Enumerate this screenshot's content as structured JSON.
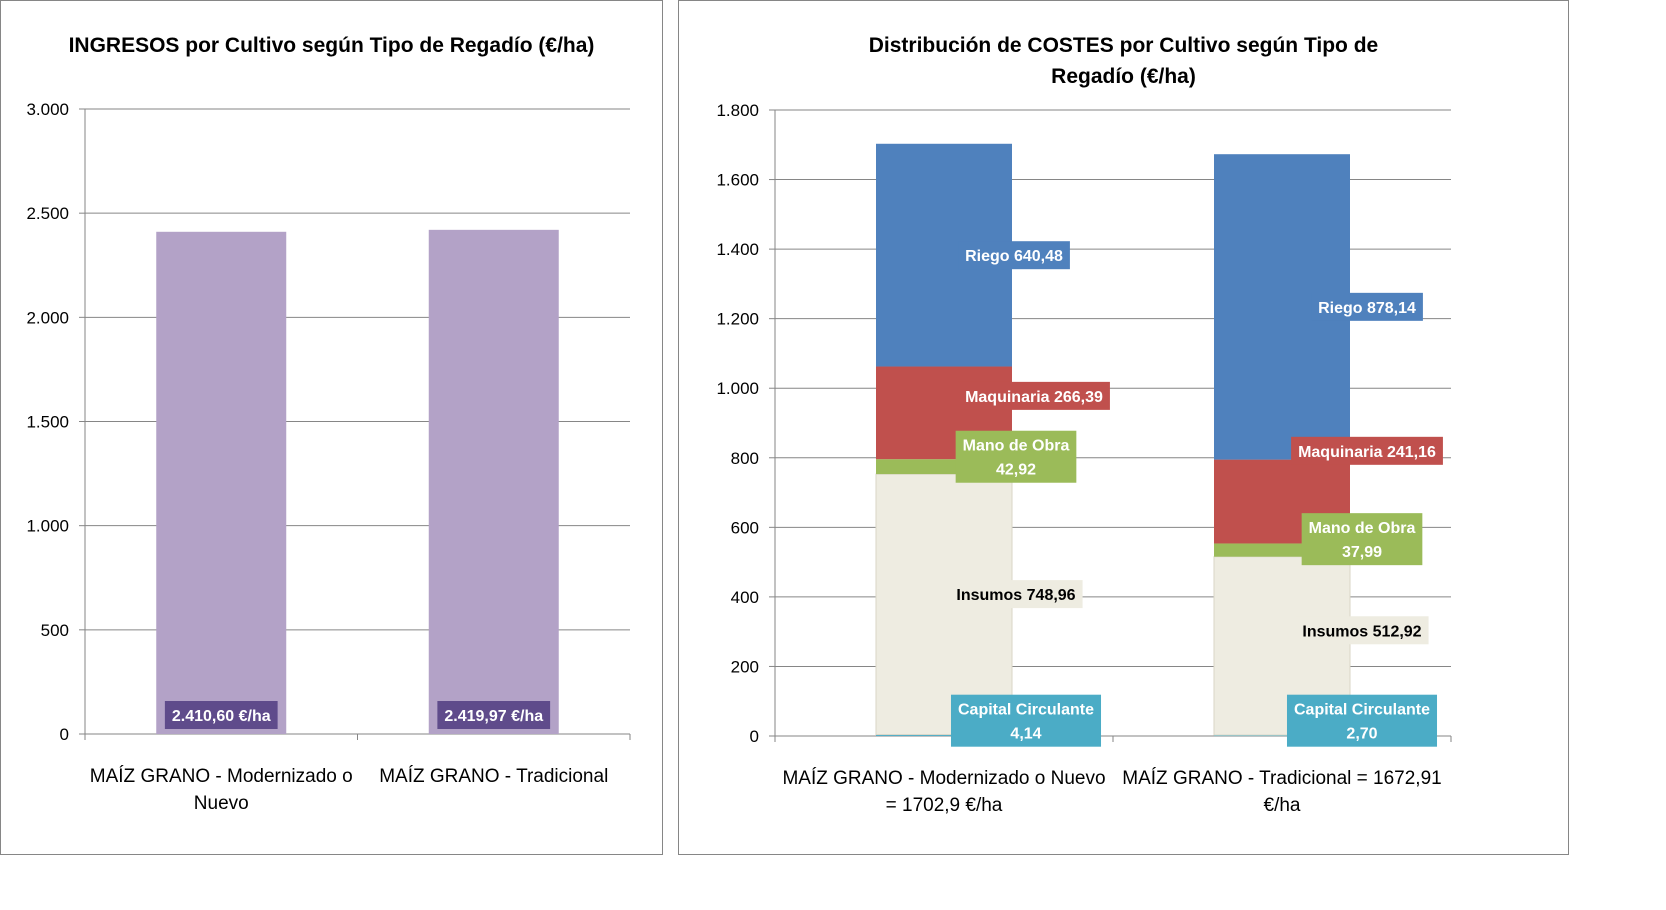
{
  "chart_data": [
    {
      "type": "bar",
      "title": "INGRESOS por Cultivo según Tipo de Regadío (€/ha)",
      "categories": [
        "MAÍZ GRANO - Modernizado o Nuevo",
        "MAÍZ GRANO - Tradicional"
      ],
      "values": [
        2410.6,
        2419.97
      ],
      "data_labels": [
        "2.410,60 €/ha",
        "2.419,97 €/ha"
      ],
      "ylim": [
        0,
        3000
      ],
      "yticks": [
        0,
        500,
        1000,
        1500,
        2000,
        2500,
        3000
      ],
      "ytick_labels": [
        "0",
        "500",
        "1.000",
        "1.500",
        "2.000",
        "2.500",
        "3.000"
      ],
      "grid": true,
      "colors": {
        "bar": "#B3A2C7",
        "label_bg": "#5F4B8B",
        "label_text": "#FFFFFF"
      }
    },
    {
      "type": "bar",
      "stacked": true,
      "title": "Distribución de COSTES por Cultivo según Tipo de Regadío (€/ha)",
      "categories": [
        "MAÍZ GRANO - Modernizado o Nuevo = 1702,9 €/ha",
        "MAÍZ GRANO - Tradicional = 1672,91 €/ha"
      ],
      "ylim": [
        0,
        1800
      ],
      "yticks": [
        0,
        200,
        400,
        600,
        800,
        1000,
        1200,
        1400,
        1600,
        1800
      ],
      "ytick_labels": [
        "0",
        "200",
        "400",
        "600",
        "800",
        "1.000",
        "1.200",
        "1.400",
        "1.600",
        "1.800"
      ],
      "grid": true,
      "series": [
        {
          "name": "Capital Circulante",
          "values": [
            4.14,
            2.7
          ],
          "labels": [
            "Capital Circulante\n4,14",
            "Capital Circulante\n2,70"
          ],
          "color": "#4BACC6",
          "label_bg": "#4BACC6",
          "label_color": "#FFFFFF"
        },
        {
          "name": "Insumos",
          "values": [
            748.96,
            512.92
          ],
          "labels": [
            "Insumos 748,96",
            "Insumos 512,92"
          ],
          "color": "#EEECE1",
          "label_bg": "#EEECE1",
          "label_color": "#000000"
        },
        {
          "name": "Mano de Obra",
          "values": [
            42.92,
            37.99
          ],
          "labels": [
            "Mano de Obra\n42,92",
            "Mano de Obra\n37,99"
          ],
          "color": "#9BBB59",
          "label_bg": "#9BBB59",
          "label_color": "#FFFFFF"
        },
        {
          "name": "Maquinaria",
          "values": [
            266.39,
            241.16
          ],
          "labels": [
            "Maquinaria  266,39",
            "Maquinaria  241,16"
          ],
          "color": "#C0504D",
          "label_bg": "#C0504D",
          "label_color": "#FFFFFF"
        },
        {
          "name": "Riego",
          "values": [
            640.48,
            878.14
          ],
          "labels": [
            "Riego 640,48",
            "Riego 878,14"
          ],
          "color": "#4F81BD",
          "label_bg": "#4F81BD",
          "label_color": "#FFFFFF"
        }
      ]
    }
  ]
}
